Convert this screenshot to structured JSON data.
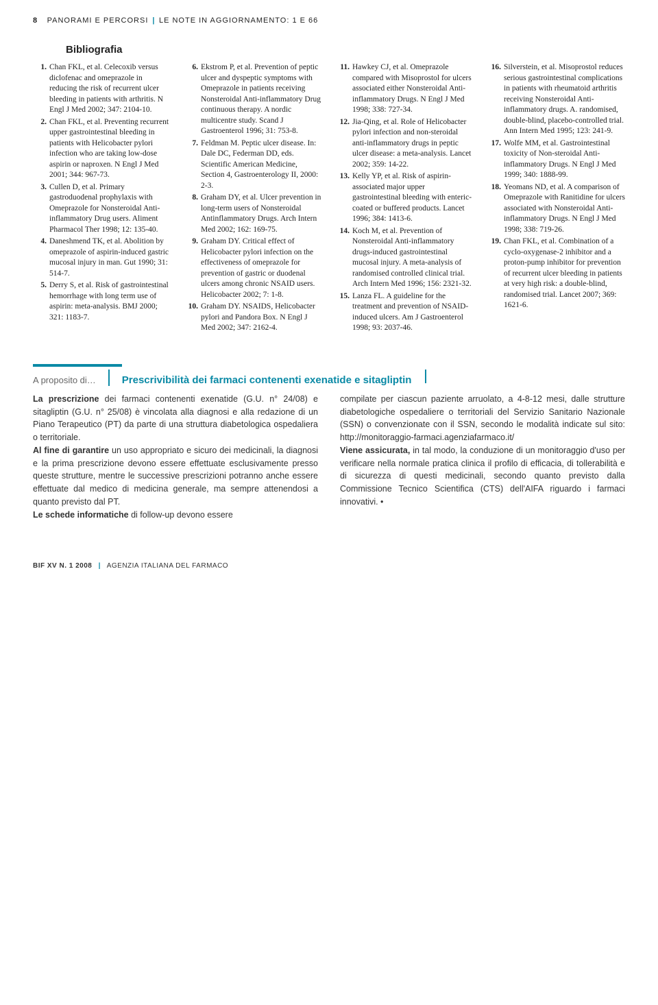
{
  "header": {
    "page_number": "8",
    "section": "PANORAMI E PERCORSI",
    "subtitle": "LE NOTE IN AGGIORNAMENTO: 1 E 66"
  },
  "bibliography": {
    "title": "Bibliografia",
    "columns": [
      [
        {
          "n": "1.",
          "t": "Chan FKL, et al. Celecoxib versus diclofenac and omeprazole in reducing the risk of recurrent ulcer bleeding in patients with arthritis. N Engl J Med 2002; 347: 2104-10."
        },
        {
          "n": "2.",
          "t": "Chan FKL, et al. Preventing recurrent upper gastrointestinal bleeding in patients with Helicobacter pylori infection who are taking low-dose aspirin or naproxen. N Engl J Med 2001; 344: 967-73."
        },
        {
          "n": "3.",
          "t": "Cullen D, et al. Primary gastroduodenal prophylaxis with Omeprazole for Nonsteroidal Anti-inflammatory Drug users. Aliment Pharmacol Ther 1998; 12: 135-40."
        },
        {
          "n": "4.",
          "t": "Daneshmend TK, et al. Abolition by omeprazole of aspirin-induced gastric mucosal injury in man. Gut 1990; 31: 514-7."
        },
        {
          "n": "5.",
          "t": "Derry S, et al. Risk of gastrointestinal hemorrhage with long term use of aspirin: meta-analysis. BMJ 2000; 321: 1183-7."
        }
      ],
      [
        {
          "n": "6.",
          "t": "Ekstrom P, et al. Prevention of peptic ulcer and dyspeptic symptoms with Omeprazole in patients receiving Nonsteroidal Anti-inflammatory Drug continuous therapy. A nordic multicentre study. Scand J Gastroenterol 1996; 31: 753-8."
        },
        {
          "n": "7.",
          "t": "Feldman M. Peptic ulcer disease. In: Dale DC, Federman DD, eds. Scientific American Medicine, Section 4, Gastroenterology II, 2000: 2-3."
        },
        {
          "n": "8.",
          "t": "Graham DY, et al. Ulcer prevention in long-term users of Nonsteroidal Antinflammatory Drugs. Arch Intern Med 2002; 162: 169-75."
        },
        {
          "n": "9.",
          "t": "Graham DY. Critical effect of Helicobacter pylori infection on the effectiveness of omeprazole for prevention of gastric or duodenal ulcers among chronic NSAID users. Helicobacter 2002; 7: 1-8."
        },
        {
          "n": "10.",
          "t": "Graham DY. NSAIDS, Helicobacter pylori and Pandora Box. N Engl J Med 2002; 347: 2162-4."
        }
      ],
      [
        {
          "n": "11.",
          "t": "Hawkey CJ, et al. Omeprazole compared with Misoprostol for ulcers associated either Nonsteroidal Anti-inflammatory Drugs. N Engl J Med 1998; 338: 727-34."
        },
        {
          "n": "12.",
          "t": "Jia-Qing, et al. Role of Helicobacter pylori infection and non-steroidal anti-inflammatory drugs in peptic ulcer disease: a meta-analysis. Lancet 2002; 359: 14-22."
        },
        {
          "n": "13.",
          "t": "Kelly YP, et al. Risk of aspirin-associated major upper gastrointestinal bleeding with enteric-coated or buffered products. Lancet 1996; 384: 1413-6."
        },
        {
          "n": "14.",
          "t": "Koch M, et al. Prevention of Nonsteroidal Anti-inflammatory drugs-induced gastrointestinal mucosal injury. A meta-analysis of randomised controlled clinical trial. Arch Intern Med 1996; 156: 2321-32."
        },
        {
          "n": "15.",
          "t": "Lanza FL. A guideline for the treatment and prevention of NSAID-induced ulcers. Am J Gastroenterol 1998; 93: 2037-46."
        }
      ],
      [
        {
          "n": "16.",
          "t": "Silverstein, et al. Misoprostol reduces serious gastrointestinal complications in patients with rheumatoid arthritis receiving Nonsteroidal Anti-inflammatory drugs. A. randomised, double-blind, placebo-controlled trial. Ann Intern Med 1995; 123: 241-9."
        },
        {
          "n": "17.",
          "t": "Wolfe MM, et al. Gastrointestinal toxicity of Non-steroidal Anti-inflammatory Drugs. N Engl J Med 1999; 340: 1888-99."
        },
        {
          "n": "18.",
          "t": "Yeomans ND, et al. A comparison of Omeprazole with Ranitidine for ulcers associated with Nonsteroidal Anti-inflammatory Drugs. N Engl J Med 1998; 338: 719-26."
        },
        {
          "n": "19.",
          "t": "Chan FKL, et al. Combination of a cyclo-oxygenase-2 inhibitor and a proton-pump inhibitor for prevention of recurrent ulcer bleeding in patients at very high risk: a double-blind, randomised trial. Lancet 2007; 369: 1621-6."
        }
      ]
    ]
  },
  "article": {
    "label": "A proposito di…",
    "title": "Prescrivibilità dei farmaci contenenti exenatide e sitagliptin",
    "left": {
      "lead": "La prescrizione",
      "p1": " dei farmaci contenenti exenatide (G.U. n° 24/08) e sitagliptin (G.U. n° 25/08) è vincolata alla diagnosi e alla redazione di un Piano Terapeutico (PT) da parte di una struttura diabetologica ospedaliera o territoriale.",
      "b2": "Al fine di garantire",
      "p2": " un uso appropriato e sicuro dei medicinali, la diagnosi e la prima prescrizione devono essere effettuate esclusivamente presso queste strutture, mentre le successive prescrizioni potranno anche essere effettuate dal medico di medicina generale, ma sempre attenendosi a quanto previsto dal PT.",
      "b3": "Le schede informatiche",
      "p3": " di follow-up devono essere"
    },
    "right": {
      "p1": "compilate per ciascun paziente arruolato, a 4-8-12 mesi, dalle strutture diabetologiche ospedaliere o territoriali del Servizio Sanitario Nazionale (SSN) o convenzionate con il SSN, secondo le modalità indicate sul sito: http://monitoraggio-farmaci.agenziafarmaco.it/",
      "b2": "Viene assicurata,",
      "p2": " in tal modo, la conduzione di un monitoraggio d'uso per verificare nella normale pratica clinica il profilo di efficacia, di tollerabilità e di sicurezza di questi medicinali, secondo quanto previsto dalla Commissione Tecnico Scientifica (CTS) dell'AIFA riguardo i farmaci innovativi. •"
    }
  },
  "footer": {
    "issue": "BIF XV N. 1 2008",
    "agency": "AGENZIA ITALIANA DEL FARMACO"
  },
  "colors": {
    "accent": "#0b8aa6"
  }
}
